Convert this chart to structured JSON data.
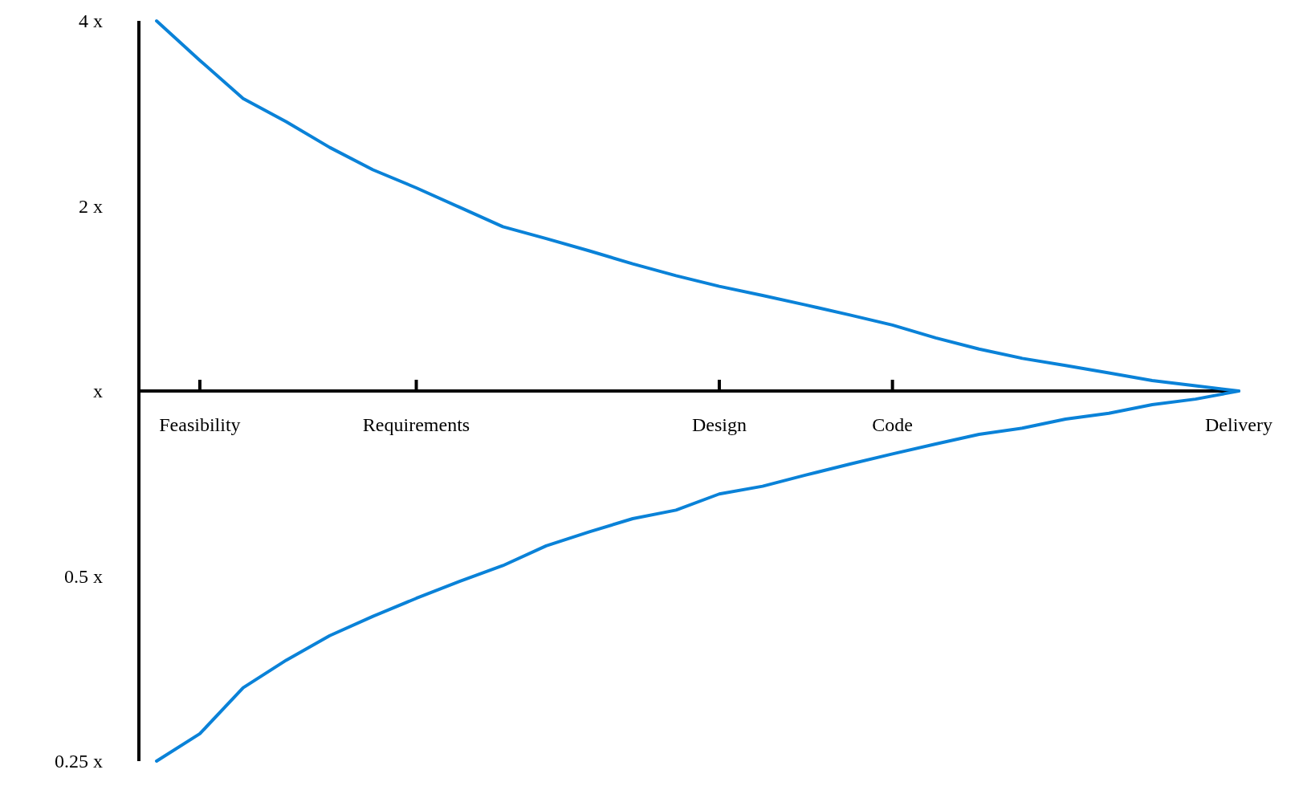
{
  "chart_data": {
    "type": "line",
    "log": "y",
    "grid": false,
    "marker": "none",
    "line_style": "solid",
    "categories": [
      null,
      "Feasibility",
      null,
      null,
      null,
      null,
      "Requirements",
      null,
      null,
      null,
      null,
      null,
      null,
      "Design",
      null,
      null,
      null,
      "Code",
      null,
      null,
      null,
      null,
      null,
      null,
      null,
      "Delivery"
    ],
    "ylim": [
      0.25,
      4
    ],
    "yticks": [
      {
        "value": 4,
        "label": "4 x"
      },
      {
        "value": 2,
        "label": "2 x"
      },
      {
        "value": 1,
        "label": "x"
      },
      {
        "value": 0.5,
        "label": "0.5 x"
      },
      {
        "value": 0.25,
        "label": "0.25 x"
      }
    ],
    "series": [
      {
        "color": "#0a82d8",
        "values": [
          4,
          3.45,
          2.99,
          2.74,
          2.49,
          2.29,
          2.14,
          1.99,
          1.85,
          1.77,
          1.69,
          1.61,
          1.54,
          1.48,
          1.43,
          1.38,
          1.33,
          1.28,
          1.22,
          1.17,
          1.13,
          1.1,
          1.07,
          1.04,
          1.02,
          1
        ]
      },
      {
        "color": "#0a82d8",
        "values": [
          0.25,
          0.277,
          0.329,
          0.365,
          0.4,
          0.43,
          0.46,
          0.49,
          0.52,
          0.56,
          0.59,
          0.62,
          0.64,
          0.68,
          0.7,
          0.73,
          0.76,
          0.79,
          0.82,
          0.85,
          0.87,
          0.9,
          0.92,
          0.95,
          0.97,
          1
        ]
      }
    ]
  }
}
